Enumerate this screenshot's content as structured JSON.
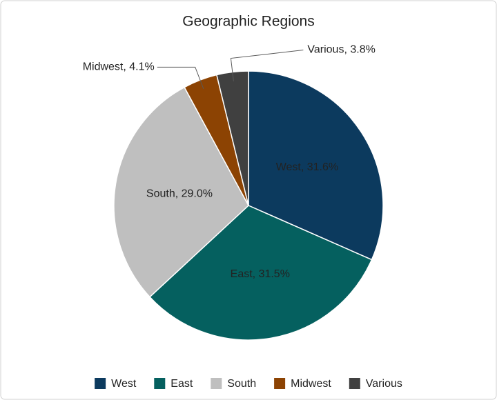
{
  "chart_data": {
    "type": "pie",
    "title": "Geographic Regions",
    "categories": [
      "West",
      "East",
      "South",
      "Midwest",
      "Various"
    ],
    "values": [
      31.6,
      31.5,
      29.0,
      4.1,
      3.8
    ],
    "value_labels": [
      "West, 31.6%",
      "East, 31.5%",
      "South, 29.0%",
      "Midwest, 4.1%",
      "Various, 3.8%"
    ],
    "colors": [
      "#0c3a5e",
      "#05605f",
      "#bfbfbf",
      "#8c4303",
      "#404040"
    ],
    "legend": "bottom"
  }
}
